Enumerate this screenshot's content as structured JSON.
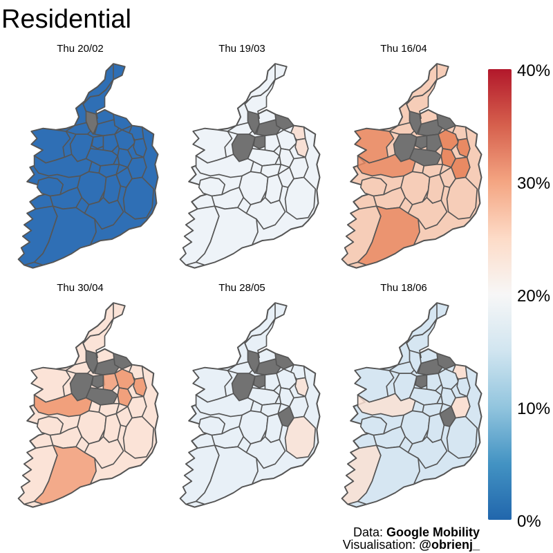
{
  "title": "Residential",
  "legend": {
    "ticks": [
      "40%",
      "30%",
      "20%",
      "10%",
      "0%"
    ],
    "min": 0,
    "max": 40,
    "colors": [
      "#2166ac",
      "#4393c3",
      "#92c5de",
      "#d1e5f0",
      "#f7f7f7",
      "#fddbc7",
      "#f4a582",
      "#d6604d",
      "#b2182b"
    ]
  },
  "missing_color": "#727272",
  "border_color": "#555555",
  "panels": [
    {
      "label": "Thu 20/02",
      "base_color": "#2f6fb5",
      "accent_color": "#2f6fb5"
    },
    {
      "label": "Thu 19/03",
      "base_color": "#eef3f8",
      "accent_color": "#f8e0d5"
    },
    {
      "label": "Thu 16/04",
      "base_color": "#f6cdb8",
      "accent_color": "#e98a63"
    },
    {
      "label": "Thu 30/04",
      "base_color": "#fbe3d7",
      "accent_color": "#f1a07c"
    },
    {
      "label": "Thu 28/05",
      "base_color": "#e8f0f7",
      "accent_color": "#f8e4da"
    },
    {
      "label": "Thu 18/06",
      "base_color": "#d6e6f2",
      "accent_color": "#fae0d3"
    }
  ],
  "caption": {
    "data_prefix": "Data: ",
    "data_source": "Google Mobility",
    "vis_prefix": "Visualisation: ",
    "vis_author": "@obrienj_"
  }
}
